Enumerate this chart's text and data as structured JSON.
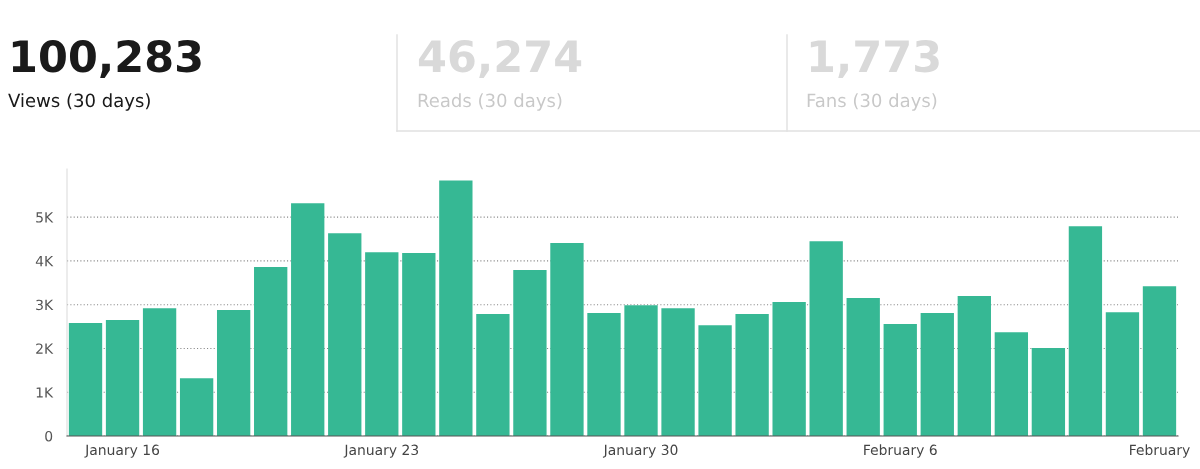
{
  "chart_data": {
    "type": "bar",
    "color": "#36b894",
    "categories": [
      null,
      "January 16",
      null,
      null,
      null,
      null,
      null,
      null,
      "January 23",
      null,
      null,
      null,
      null,
      null,
      null,
      "January 30",
      null,
      null,
      null,
      null,
      null,
      null,
      "February 6",
      null,
      null,
      null,
      null,
      null,
      null,
      "February"
    ],
    "values": [
      2580,
      2650,
      2920,
      1320,
      2880,
      3860,
      5320,
      4630,
      4200,
      4180,
      5840,
      2790,
      3790,
      4410,
      2810,
      2990,
      2920,
      2530,
      2790,
      3060,
      4450,
      3150,
      2560,
      2810,
      3200,
      2370,
      2010,
      4790,
      2830,
      3420
    ],
    "ylim": [
      0,
      6100
    ],
    "yticks": [
      0,
      {
        "value": 1000,
        "label": "1K"
      },
      {
        "value": 2000,
        "label": "2K"
      },
      {
        "value": 3000,
        "label": "3K"
      },
      {
        "value": 4000,
        "label": "4K"
      },
      {
        "value": 5000,
        "label": "5K"
      }
    ],
    "grid": "y",
    "legend": false,
    "annotations": [
      "100,283",
      "Views (30 days)",
      "46,274",
      "Reads (30 days)",
      "1,773",
      "Fans (30 days)"
    ]
  }
}
